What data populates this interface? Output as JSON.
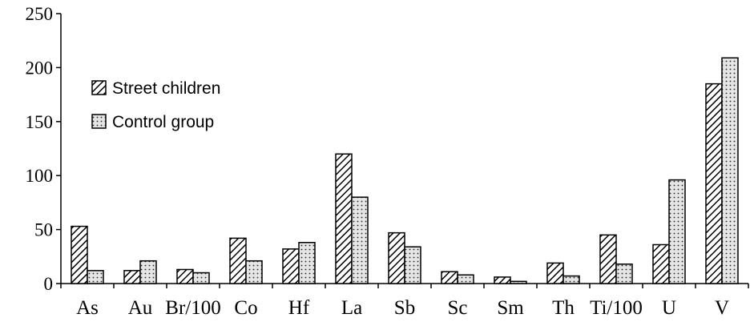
{
  "chart_data": {
    "type": "bar",
    "categories": [
      "As",
      "Au",
      "Br/100",
      "Co",
      "Hf",
      "La",
      "Sb",
      "Sc",
      "Sm",
      "Th",
      "Ti/100",
      "U",
      "V"
    ],
    "series": [
      {
        "name": "Street children",
        "pattern": "diagonal-hatch",
        "values": [
          53,
          12,
          13,
          42,
          32,
          120,
          47,
          11,
          6,
          19,
          45,
          36,
          185
        ]
      },
      {
        "name": "Control group",
        "pattern": "dotted",
        "values": [
          12,
          21,
          10,
          21,
          38,
          80,
          34,
          8,
          2,
          7,
          18,
          96,
          209
        ]
      }
    ],
    "ylim": [
      0,
      250
    ],
    "yticks": [
      "0",
      "50",
      "100",
      "150",
      "200",
      "250"
    ],
    "grid": false,
    "legend_position": "top-left"
  }
}
